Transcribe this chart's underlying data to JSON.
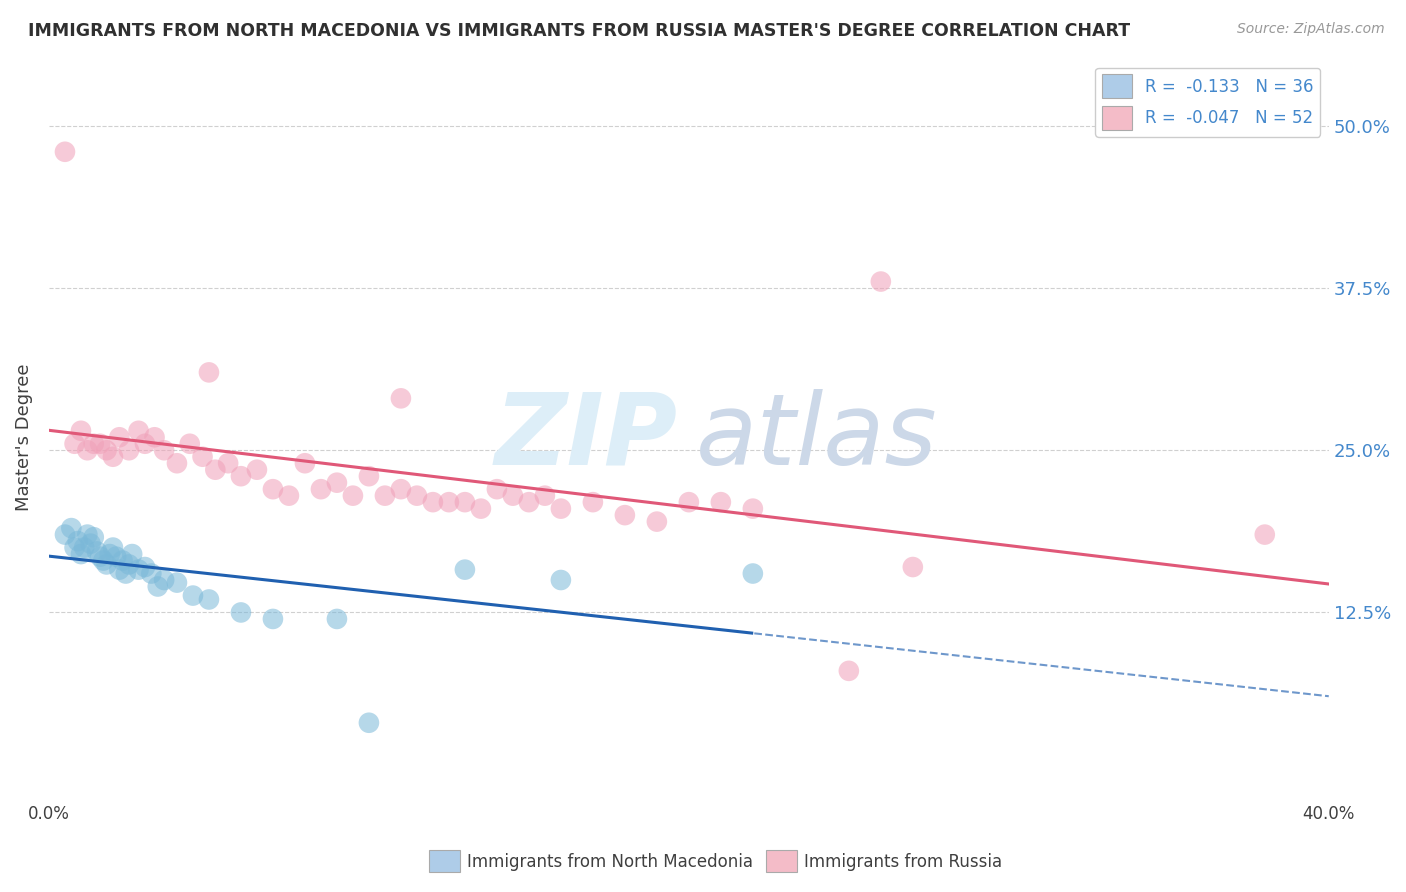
{
  "title": "IMMIGRANTS FROM NORTH MACEDONIA VS IMMIGRANTS FROM RUSSIA MASTER'S DEGREE CORRELATION CHART",
  "source_text": "Source: ZipAtlas.com",
  "ylabel": "Master's Degree",
  "xlim": [
    0.0,
    0.4
  ],
  "ylim": [
    -0.02,
    0.54
  ],
  "yticks": [
    0.125,
    0.25,
    0.375,
    0.5
  ],
  "ytick_labels": [
    "12.5%",
    "25.0%",
    "37.5%",
    "50.0%"
  ],
  "xticks": [
    0.0,
    0.4
  ],
  "xtick_labels": [
    "0.0%",
    "40.0%"
  ],
  "blue_x": [
    0.005,
    0.007,
    0.008,
    0.009,
    0.01,
    0.011,
    0.012,
    0.013,
    0.014,
    0.015,
    0.016,
    0.017,
    0.018,
    0.019,
    0.02,
    0.021,
    0.022,
    0.023,
    0.024,
    0.025,
    0.026,
    0.028,
    0.03,
    0.032,
    0.034,
    0.036,
    0.04,
    0.045,
    0.05,
    0.06,
    0.07,
    0.09,
    0.1,
    0.13,
    0.22,
    0.16
  ],
  "blue_y": [
    0.185,
    0.19,
    0.175,
    0.18,
    0.17,
    0.175,
    0.185,
    0.178,
    0.183,
    0.172,
    0.168,
    0.165,
    0.162,
    0.17,
    0.175,
    0.168,
    0.158,
    0.165,
    0.155,
    0.162,
    0.17,
    0.158,
    0.16,
    0.155,
    0.145,
    0.15,
    0.148,
    0.138,
    0.135,
    0.125,
    0.12,
    0.12,
    0.04,
    0.158,
    0.155,
    0.15
  ],
  "pink_x": [
    0.005,
    0.008,
    0.01,
    0.012,
    0.014,
    0.016,
    0.018,
    0.02,
    0.022,
    0.025,
    0.028,
    0.03,
    0.033,
    0.036,
    0.04,
    0.044,
    0.048,
    0.052,
    0.056,
    0.06,
    0.065,
    0.07,
    0.075,
    0.08,
    0.085,
    0.09,
    0.095,
    0.1,
    0.105,
    0.11,
    0.115,
    0.12,
    0.125,
    0.13,
    0.135,
    0.14,
    0.145,
    0.15,
    0.155,
    0.16,
    0.17,
    0.18,
    0.19,
    0.2,
    0.21,
    0.22,
    0.25,
    0.27,
    0.11,
    0.38,
    0.26,
    0.05
  ],
  "pink_y": [
    0.48,
    0.255,
    0.265,
    0.25,
    0.255,
    0.255,
    0.25,
    0.245,
    0.26,
    0.25,
    0.265,
    0.255,
    0.26,
    0.25,
    0.24,
    0.255,
    0.245,
    0.235,
    0.24,
    0.23,
    0.235,
    0.22,
    0.215,
    0.24,
    0.22,
    0.225,
    0.215,
    0.23,
    0.215,
    0.22,
    0.215,
    0.21,
    0.21,
    0.21,
    0.205,
    0.22,
    0.215,
    0.21,
    0.215,
    0.205,
    0.21,
    0.2,
    0.195,
    0.21,
    0.21,
    0.205,
    0.08,
    0.16,
    0.29,
    0.185,
    0.38,
    0.31
  ],
  "blue_color": "#7ab8d8",
  "pink_color": "#f0a0b8",
  "blue_line_color": "#2060b0",
  "pink_line_color": "#e05878",
  "legend_blue_color": "#aecce8",
  "legend_pink_color": "#f4bcc8",
  "background_color": "#ffffff",
  "grid_color": "#d0d0d0",
  "title_color": "#303030",
  "axis_label_color": "#404040",
  "right_tick_color": "#4488cc",
  "watermark_zip_color": "#ddeef8",
  "watermark_atlas_color": "#ccd8e8"
}
